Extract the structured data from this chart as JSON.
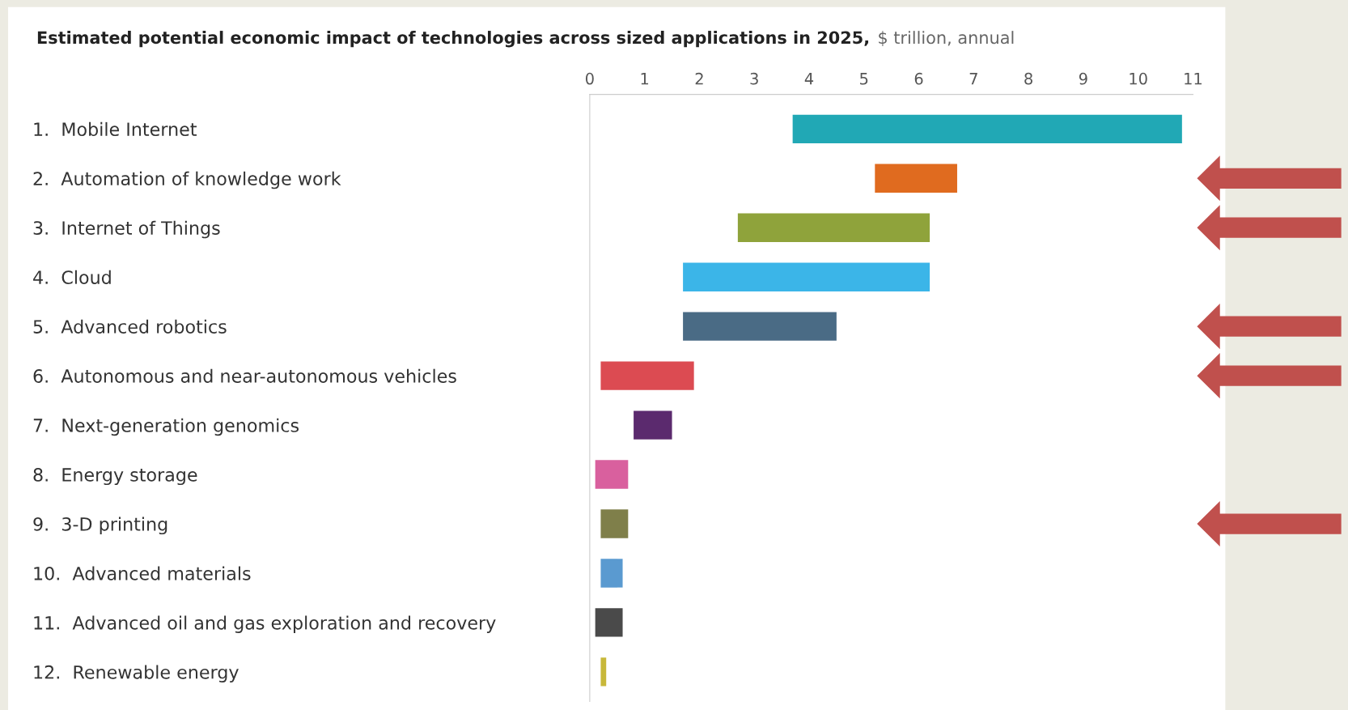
{
  "chart_data": {
    "type": "bar",
    "orientation": "horizontal",
    "title": "Estimated potential economic impact of technologies across sized applications in 2025,",
    "subtitle": "$ trillion, annual",
    "categories": [
      "1.  Mobile Internet",
      "2.  Automation of knowledge work",
      "3.  Internet of Things",
      "4.  Cloud",
      "5.  Advanced robotics",
      "6.  Autonomous and near-autonomous vehicles",
      "7.  Next-generation genomics",
      "8.  Energy storage",
      "9.  3-D printing",
      "10.  Advanced materials",
      "11.  Advanced oil and gas exploration and recovery",
      "12.  Renewable energy"
    ],
    "base": [
      3.7,
      5.2,
      2.7,
      1.7,
      1.7,
      0.2,
      0.8,
      0.1,
      0.2,
      0.2,
      0.1,
      0.2
    ],
    "values": [
      7.1,
      1.5,
      3.5,
      4.5,
      2.8,
      1.7,
      0.7,
      0.6,
      0.5,
      0.4,
      0.5,
      0.1
    ],
    "colors": [
      "#21a8b5",
      "#e06b1f",
      "#8fa33b",
      "#3bb5e8",
      "#4a6b85",
      "#dc4b52",
      "#5b2a6e",
      "#d9609e",
      "#7f7f4a",
      "#5a9ad0",
      "#4a4a4a",
      "#c8b83a"
    ],
    "xlim": [
      0,
      11
    ],
    "xticks": [
      0,
      1,
      2,
      3,
      4,
      5,
      6,
      7,
      8,
      9,
      10,
      11
    ],
    "grid": false,
    "legend": false
  }
}
